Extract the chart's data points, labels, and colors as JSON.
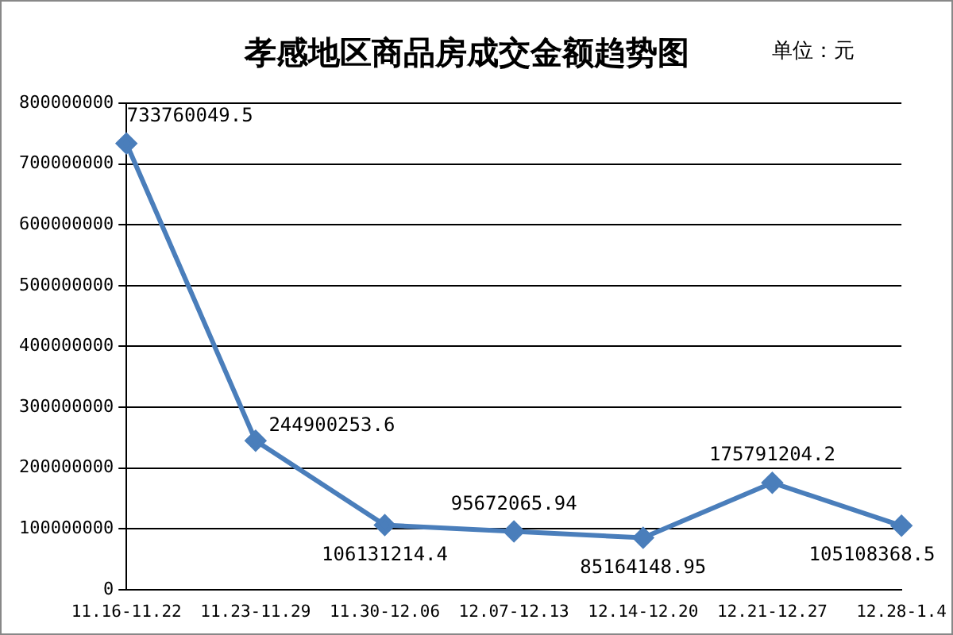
{
  "chart_data": {
    "type": "line",
    "title": "孝感地区商品房成交金额趋势图",
    "subtitle": "单位：元",
    "categories": [
      "11.16-11.22",
      "11.23-11.29",
      "11.30-12.06",
      "12.07-12.13",
      "12.14-12.20",
      "12.21-12.27",
      "12.28-1.4"
    ],
    "series": [
      {
        "color": "#4a7ebb",
        "values": [
          733760049.5,
          244900253.6,
          106131214.4,
          95672065.94,
          85164148.95,
          175791204.2,
          105108368.5
        ]
      }
    ],
    "ylim": [
      0,
      800000000
    ],
    "yticks": [
      0,
      100000000,
      200000000,
      300000000,
      400000000,
      500000000,
      600000000,
      700000000,
      800000000
    ],
    "grid": "y",
    "legend": false,
    "marker": "diamond",
    "line_style": "solid",
    "data_labels": true
  }
}
